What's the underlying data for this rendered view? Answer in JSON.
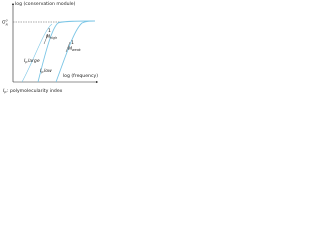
{
  "axes": {
    "y_label": "log (conservation module)",
    "x_label": "log (frequency)"
  },
  "plateau": {
    "symbol": "G",
    "superscript": "0",
    "subscript": "N"
  },
  "curves": [
    {
      "slope": "1",
      "mass": "M",
      "mass_sub": "high"
    },
    {
      "slope": "1",
      "mass": "M",
      "mass_sub": "weak"
    }
  ],
  "index_labels": [
    {
      "symbol": "I",
      "sub": "p",
      "text": "large"
    },
    {
      "symbol": "I",
      "sub": "p",
      "text": "low"
    }
  ],
  "legend": {
    "symbol": "I",
    "sub": "p",
    "text": ": polymolecularity index"
  }
}
